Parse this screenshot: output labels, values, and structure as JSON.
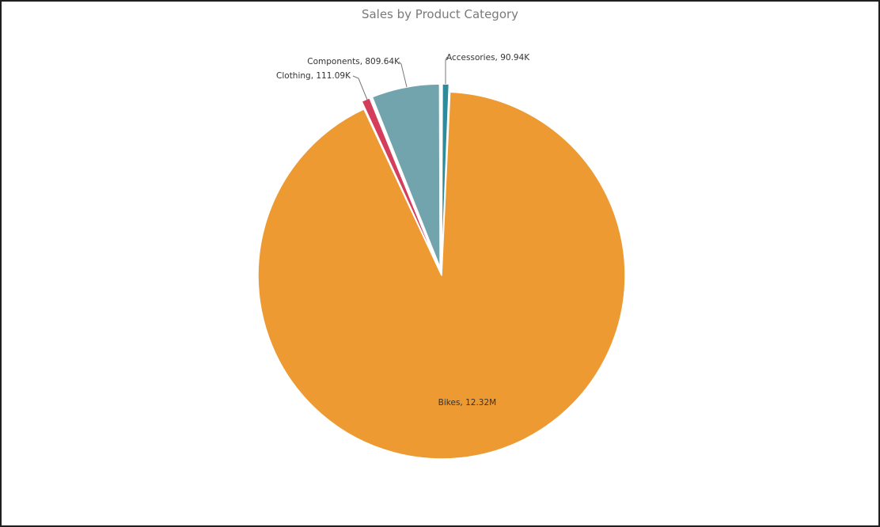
{
  "chart_data": {
    "type": "pie",
    "title": "Sales by Product Category",
    "slices": [
      {
        "name": "Accessories",
        "value": 90.94,
        "value_unit": "K",
        "label": "Accessories, 90.94K",
        "color": "#2d8b9b"
      },
      {
        "name": "Bikes",
        "value": 12.32,
        "value_unit": "M",
        "label": "Bikes, 12.32M",
        "color": "#ec9a31"
      },
      {
        "name": "Clothing",
        "value": 111.09,
        "value_unit": "K",
        "label": "Clothing, 111.09K",
        "color": "#d43d5c"
      },
      {
        "name": "Components",
        "value": 809.64,
        "value_unit": "K",
        "label": "Components, 809.64K",
        "color": "#72a4ad"
      }
    ],
    "legend": "none",
    "data_labels": "outside"
  }
}
